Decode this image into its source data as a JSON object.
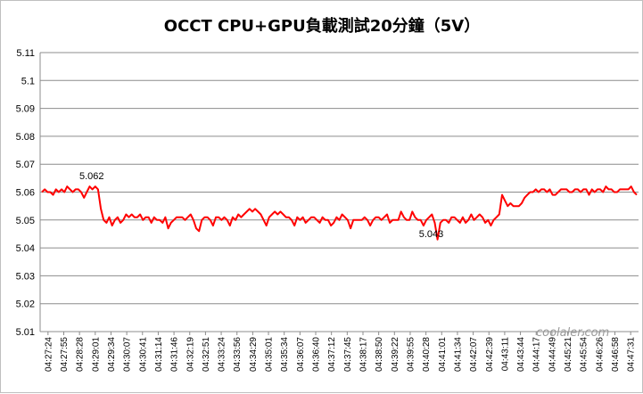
{
  "chart_data": {
    "type": "line",
    "title": "OCCT CPU+GPU負載測試20分鐘（5V）",
    "xlabel": "",
    "ylabel": "",
    "ylim": [
      5.01,
      5.11
    ],
    "yticks": [
      "5.01",
      "5.02",
      "5.03",
      "5.04",
      "5.05",
      "5.06",
      "5.07",
      "5.08",
      "5.09",
      "5.1",
      "5.11"
    ],
    "x_tick_labels": [
      "04:27:24",
      "04:27:55",
      "04:28:28",
      "04:29:01",
      "04:29:34",
      "04:30:07",
      "04:30:41",
      "04:31:14",
      "04:31:46",
      "04:32:19",
      "04:32:51",
      "04:33:24",
      "04:33:56",
      "04:34:29",
      "04:35:01",
      "04:35:34",
      "04:36:07",
      "04:36:40",
      "04:37:12",
      "04:37:45",
      "04:38:17",
      "04:38:50",
      "04:39:22",
      "04:39:55",
      "04:40:28",
      "04:41:01",
      "04:41:34",
      "04:42:07",
      "04:42:39",
      "04:43:11",
      "04:43:44",
      "04:44:17",
      "04:44:49",
      "04:45:21",
      "04:45:54",
      "04:46:26",
      "04:46:58",
      "04:47:31"
    ],
    "grid": true,
    "legend": "none",
    "series": [
      {
        "color": "#ff0000",
        "values": [
          5.06,
          5.061,
          5.06,
          5.06,
          5.059,
          5.061,
          5.06,
          5.061,
          5.06,
          5.062,
          5.061,
          5.06,
          5.061,
          5.061,
          5.06,
          5.058,
          5.06,
          5.062,
          5.061,
          5.062,
          5.061,
          5.054,
          5.05,
          5.049,
          5.051,
          5.048,
          5.05,
          5.051,
          5.049,
          5.05,
          5.052,
          5.051,
          5.052,
          5.051,
          5.051,
          5.052,
          5.05,
          5.051,
          5.051,
          5.049,
          5.051,
          5.05,
          5.05,
          5.049,
          5.051,
          5.047,
          5.049,
          5.05,
          5.051,
          5.051,
          5.051,
          5.05,
          5.051,
          5.052,
          5.05,
          5.047,
          5.046,
          5.05,
          5.051,
          5.051,
          5.05,
          5.048,
          5.051,
          5.051,
          5.05,
          5.051,
          5.05,
          5.048,
          5.051,
          5.05,
          5.052,
          5.051,
          5.052,
          5.053,
          5.054,
          5.053,
          5.054,
          5.053,
          5.052,
          5.05,
          5.048,
          5.051,
          5.052,
          5.053,
          5.052,
          5.053,
          5.052,
          5.051,
          5.051,
          5.05,
          5.048,
          5.051,
          5.05,
          5.051,
          5.049,
          5.05,
          5.051,
          5.051,
          5.05,
          5.049,
          5.051,
          5.05,
          5.05,
          5.048,
          5.049,
          5.051,
          5.05,
          5.052,
          5.051,
          5.05,
          5.047,
          5.05,
          5.05,
          5.05,
          5.05,
          5.051,
          5.05,
          5.048,
          5.05,
          5.051,
          5.051,
          5.05,
          5.051,
          5.052,
          5.049,
          5.05,
          5.05,
          5.05,
          5.053,
          5.051,
          5.05,
          5.05,
          5.053,
          5.051,
          5.05,
          5.05,
          5.048,
          5.05,
          5.051,
          5.052,
          5.049,
          5.043,
          5.049,
          5.05,
          5.05,
          5.049,
          5.051,
          5.051,
          5.05,
          5.049,
          5.051,
          5.049,
          5.05,
          5.052,
          5.05,
          5.051,
          5.052,
          5.051,
          5.049,
          5.05,
          5.048,
          5.05,
          5.051,
          5.052,
          5.059,
          5.057,
          5.055,
          5.056,
          5.055,
          5.055,
          5.055,
          5.056,
          5.058,
          5.059,
          5.06,
          5.06,
          5.061,
          5.06,
          5.061,
          5.061,
          5.06,
          5.061,
          5.059,
          5.059,
          5.06,
          5.061,
          5.061,
          5.061,
          5.06,
          5.06,
          5.061,
          5.061,
          5.06,
          5.061,
          5.061,
          5.059,
          5.061,
          5.06,
          5.061,
          5.061,
          5.06,
          5.062,
          5.061,
          5.061,
          5.06,
          5.06,
          5.061,
          5.061,
          5.061,
          5.061,
          5.062,
          5.06,
          5.059
        ]
      }
    ],
    "annotations": [
      {
        "label": "5.062",
        "index": 19
      },
      {
        "label": "5.043",
        "index": 140
      }
    ]
  },
  "watermark": "coolaler.com"
}
